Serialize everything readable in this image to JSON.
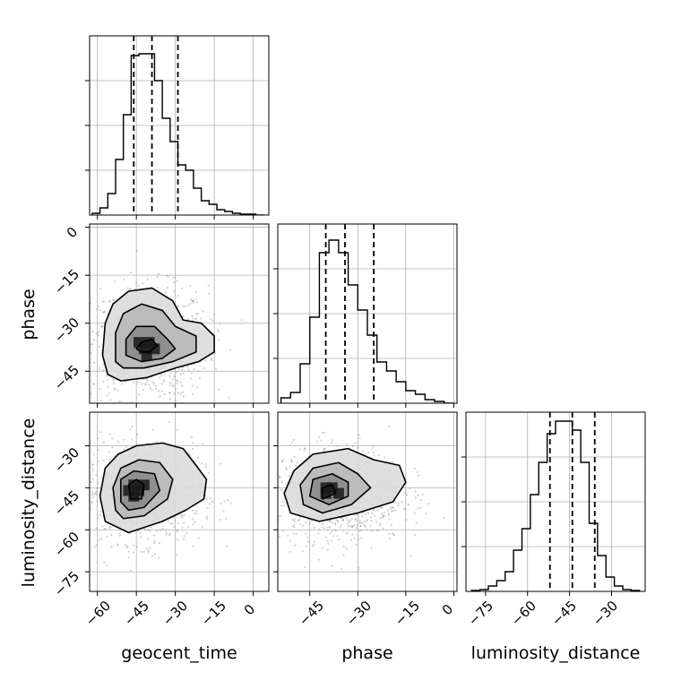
{
  "chart_data": [
    {
      "id": "geocent_time_hist",
      "type": "histogram",
      "xlim": [
        -63,
        6
      ],
      "ylim": [
        0,
        1
      ],
      "grid": true,
      "bin_edges": [
        -62,
        -59,
        -56,
        -53,
        -50,
        -47,
        -44,
        -41,
        -38,
        -35,
        -32,
        -29,
        -26,
        -23,
        -20,
        -17,
        -14,
        -11,
        -8,
        -5,
        -2,
        1,
        4
      ],
      "heights": [
        0.01,
        0.04,
        0.12,
        0.31,
        0.56,
        0.89,
        0.9,
        0.9,
        0.75,
        0.54,
        0.41,
        0.28,
        0.25,
        0.15,
        0.08,
        0.06,
        0.03,
        0.02,
        0.01,
        0.005,
        0.005,
        0
      ],
      "quantiles": [
        -46,
        -39,
        -29
      ]
    },
    {
      "id": "phase_hist",
      "type": "histogram",
      "xlim": [
        -55,
        1
      ],
      "ylim": [
        0,
        1
      ],
      "grid": true,
      "bin_edges": [
        -54,
        -51,
        -48,
        -45,
        -42,
        -39,
        -36,
        -33,
        -30,
        -27,
        -24,
        -21,
        -18,
        -15,
        -12,
        -9,
        -6,
        -3,
        0
      ],
      "heights": [
        0.03,
        0.06,
        0.22,
        0.48,
        0.84,
        0.91,
        0.84,
        0.66,
        0.52,
        0.38,
        0.23,
        0.18,
        0.12,
        0.07,
        0.05,
        0.02,
        0.01,
        0
      ],
      "quantiles": [
        -40,
        -34,
        -25
      ]
    },
    {
      "id": "luminosity_distance_hist",
      "type": "histogram",
      "xlim": [
        -82,
        -18
      ],
      "ylim": [
        0,
        1
      ],
      "grid": true,
      "bin_edges": [
        -80,
        -77,
        -74,
        -71,
        -68,
        -65,
        -62,
        -59,
        -56,
        -53,
        -50,
        -47,
        -44,
        -41,
        -38,
        -35,
        -32,
        -29,
        -26,
        -23,
        -20
      ],
      "heights": [
        0.005,
        0.01,
        0.03,
        0.06,
        0.11,
        0.23,
        0.35,
        0.54,
        0.72,
        0.88,
        0.95,
        0.95,
        0.9,
        0.72,
        0.38,
        0.2,
        0.08,
        0.03,
        0.01,
        0.005
      ],
      "quantiles": [
        -52,
        -44,
        -36
      ]
    },
    {
      "id": "geocent_time_vs_phase",
      "type": "scatter_density",
      "xlim": [
        -63,
        6
      ],
      "ylim": [
        -55,
        1
      ],
      "center": [
        -40,
        -36
      ],
      "spread": [
        9,
        7
      ],
      "contours": [
        [
          [
            -56,
            -46
          ],
          [
            -58,
            -40
          ],
          [
            -57,
            -30
          ],
          [
            -54,
            -24
          ],
          [
            -48,
            -20
          ],
          [
            -39,
            -19
          ],
          [
            -31,
            -23
          ],
          [
            -27,
            -29
          ],
          [
            -20,
            -30
          ],
          [
            -15,
            -34
          ],
          [
            -15,
            -39
          ],
          [
            -21,
            -42
          ],
          [
            -30,
            -44
          ],
          [
            -41,
            -47
          ],
          [
            -51,
            -48
          ]
        ],
        [
          [
            -53,
            -42
          ],
          [
            -53,
            -33
          ],
          [
            -50,
            -27
          ],
          [
            -43,
            -24
          ],
          [
            -35,
            -26
          ],
          [
            -30,
            -31
          ],
          [
            -22,
            -34
          ],
          [
            -22,
            -39
          ],
          [
            -31,
            -42
          ],
          [
            -42,
            -44
          ],
          [
            -50,
            -44
          ]
        ],
        [
          [
            -49,
            -40
          ],
          [
            -49,
            -35
          ],
          [
            -45,
            -31
          ],
          [
            -38,
            -31
          ],
          [
            -33,
            -35
          ],
          [
            -30,
            -38
          ],
          [
            -35,
            -41
          ],
          [
            -43,
            -42
          ]
        ],
        [
          [
            -45,
            -38
          ],
          [
            -43,
            -36
          ],
          [
            -39,
            -35
          ],
          [
            -37,
            -37
          ],
          [
            -40,
            -39
          ],
          [
            -43,
            -39
          ]
        ]
      ],
      "dark_cells": [
        [
          -42,
          -38
        ],
        [
          -40,
          -36
        ],
        [
          -38,
          -38
        ],
        [
          -44,
          -36
        ],
        [
          -41,
          -40
        ]
      ]
    },
    {
      "id": "geocent_time_vs_luminosity_distance",
      "type": "scatter_density",
      "xlim": [
        -63,
        6
      ],
      "ylim": [
        -82,
        -18
      ],
      "center": [
        -42,
        -47
      ],
      "spread": [
        9,
        7
      ],
      "contours": [
        [
          [
            -57,
            -57
          ],
          [
            -59,
            -48
          ],
          [
            -57,
            -38
          ],
          [
            -52,
            -33
          ],
          [
            -45,
            -30
          ],
          [
            -35,
            -29
          ],
          [
            -27,
            -31
          ],
          [
            -22,
            -37
          ],
          [
            -18,
            -42
          ],
          [
            -19,
            -49
          ],
          [
            -26,
            -53
          ],
          [
            -35,
            -57
          ],
          [
            -48,
            -61
          ]
        ],
        [
          [
            -53,
            -53
          ],
          [
            -54,
            -45
          ],
          [
            -51,
            -38
          ],
          [
            -44,
            -35
          ],
          [
            -36,
            -36
          ],
          [
            -31,
            -42
          ],
          [
            -33,
            -49
          ],
          [
            -42,
            -55
          ],
          [
            -50,
            -56
          ]
        ],
        [
          [
            -51,
            -50
          ],
          [
            -51,
            -42
          ],
          [
            -46,
            -39
          ],
          [
            -38,
            -40
          ],
          [
            -36,
            -46
          ],
          [
            -42,
            -52
          ],
          [
            -48,
            -53
          ]
        ],
        [
          [
            -47,
            -49
          ],
          [
            -48,
            -44
          ],
          [
            -45,
            -42
          ],
          [
            -42,
            -44
          ],
          [
            -43,
            -49
          ]
        ]
      ],
      "dark_cells": [
        [
          -46,
          -44
        ],
        [
          -44,
          -46
        ],
        [
          -46,
          -48
        ],
        [
          -42,
          -44
        ],
        [
          -48,
          -46
        ]
      ]
    },
    {
      "id": "phase_vs_luminosity_distance",
      "type": "scatter_density",
      "xlim": [
        -55,
        1
      ],
      "ylim": [
        -82,
        -18
      ],
      "center": [
        -36,
        -47
      ],
      "spread": [
        8,
        7
      ],
      "contours": [
        [
          [
            -51,
            -54
          ],
          [
            -53,
            -47
          ],
          [
            -50,
            -39
          ],
          [
            -44,
            -33
          ],
          [
            -33,
            -31
          ],
          [
            -25,
            -35
          ],
          [
            -17,
            -37
          ],
          [
            -15,
            -43
          ],
          [
            -19,
            -50
          ],
          [
            -30,
            -54
          ],
          [
            -42,
            -57
          ]
        ],
        [
          [
            -47,
            -51
          ],
          [
            -48,
            -44
          ],
          [
            -44,
            -38
          ],
          [
            -36,
            -36
          ],
          [
            -30,
            -40
          ],
          [
            -26,
            -45
          ],
          [
            -32,
            -51
          ],
          [
            -41,
            -54
          ]
        ],
        [
          [
            -45,
            -48
          ],
          [
            -44,
            -42
          ],
          [
            -38,
            -40
          ],
          [
            -33,
            -43
          ],
          [
            -33,
            -48
          ],
          [
            -39,
            -51
          ]
        ],
        [
          [
            -41,
            -49
          ],
          [
            -41,
            -45
          ],
          [
            -38,
            -44
          ],
          [
            -37,
            -47
          ]
        ]
      ],
      "dark_cells": [
        [
          -40,
          -47
        ],
        [
          -38,
          -45
        ],
        [
          -36,
          -47
        ],
        [
          -40,
          -45
        ]
      ]
    }
  ],
  "axes": {
    "geocent_time": {
      "label": "geocent_time",
      "ticks": [
        -60,
        -45,
        -30,
        -15,
        0
      ],
      "tick_labels": [
        "−60",
        "−45",
        "−30",
        "−15",
        "0"
      ]
    },
    "phase_x": {
      "label": "phase",
      "ticks": [
        -45,
        -30,
        -15,
        0
      ],
      "tick_labels": [
        "−45",
        "−30",
        "−15",
        "0"
      ]
    },
    "phase_y": {
      "label": "phase",
      "ticks": [
        0,
        -15,
        -30,
        -45
      ],
      "tick_labels": [
        "0",
        "−15",
        "−30",
        "−45"
      ]
    },
    "luminosity_distance_x": {
      "label": "luminosity_distance",
      "ticks": [
        -75,
        -60,
        -45,
        -30
      ],
      "tick_labels": [
        "−75",
        "−60",
        "−45",
        "−30"
      ]
    },
    "luminosity_distance_y": {
      "label": "luminosity_distance",
      "ticks": [
        -30,
        -45,
        -60,
        -75
      ],
      "tick_labels": [
        "−30",
        "−45",
        "−60",
        "−75"
      ]
    }
  },
  "style": {
    "line_color": "#000000",
    "grid_color": "#b0b0b0",
    "scatter_color": "#9a9a9a",
    "density_colors": [
      "#f4f4f4",
      "#dcdcdc",
      "#b8b8b8",
      "#8a8a8a",
      "#555555",
      "#1a1a1a"
    ]
  }
}
